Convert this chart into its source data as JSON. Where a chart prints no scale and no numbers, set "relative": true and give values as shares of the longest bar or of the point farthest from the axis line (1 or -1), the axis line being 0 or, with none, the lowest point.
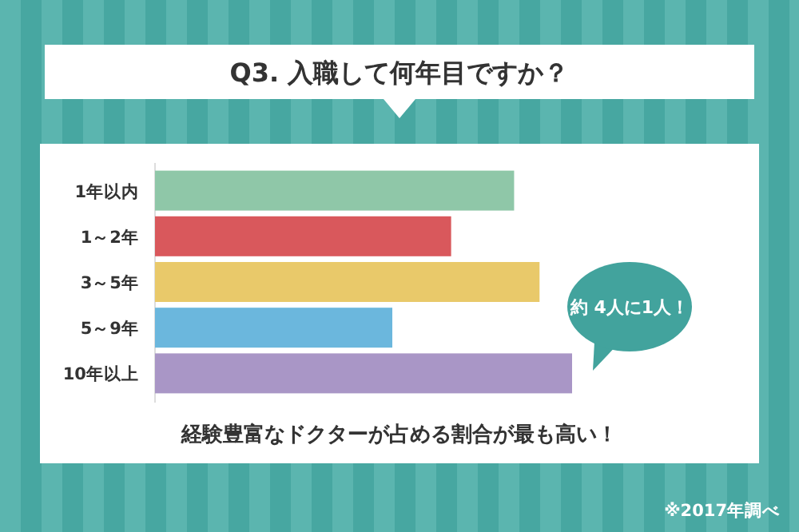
{
  "chart_data": {
    "type": "bar",
    "orientation": "horizontal",
    "relative": true,
    "title": "Q3. 入職して何年目ですか？",
    "categories": [
      "1年以内",
      "1～2年",
      "3～5年",
      "5～9年",
      "10年以上"
    ],
    "values": [
      0.861,
      0.71,
      0.922,
      0.569,
      1
    ],
    "colors": [
      "#8fc7a8",
      "#d9585c",
      "#e9c96a",
      "#6bb7dd",
      "#a996c6"
    ],
    "annotations": [
      "約 4人に1人！",
      "経験豊富なドクターが占める割合が最も高い！",
      "※2017年調べ"
    ]
  }
}
